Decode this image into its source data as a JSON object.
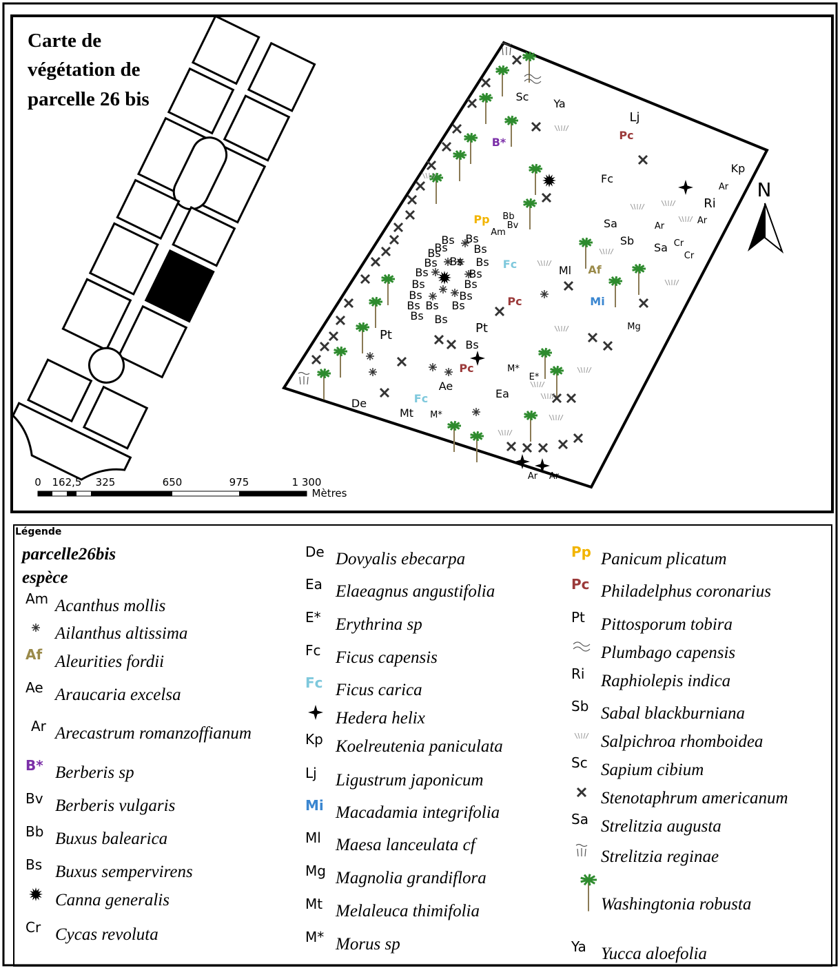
{
  "map": {
    "title": [
      "Carte de",
      "végétation de",
      "parcelle 26 bis"
    ],
    "north": "N",
    "scale": {
      "labels": [
        "0",
        "162,5",
        "325",
        "650",
        "975",
        "1 300"
      ],
      "unit": "Mètres"
    },
    "labels": [
      {
        "text": "Sc"
      },
      {
        "text": "Ya"
      },
      {
        "text": "Lj"
      },
      {
        "text": "Pc",
        "color": "#9b3a3a"
      },
      {
        "text": "B*",
        "color": "#7b2fa8"
      },
      {
        "text": "Kp"
      },
      {
        "text": "Ar"
      },
      {
        "text": "Fc"
      },
      {
        "text": "Ri"
      },
      {
        "text": "Ar"
      },
      {
        "text": "Ar"
      },
      {
        "text": "Sa"
      },
      {
        "text": "Pp",
        "color": "#f2b400"
      },
      {
        "text": "Bb"
      },
      {
        "text": "Bv"
      },
      {
        "text": "Am"
      },
      {
        "text": "Sb"
      },
      {
        "text": "Sa"
      },
      {
        "text": "Cr"
      },
      {
        "text": "Cr"
      },
      {
        "text": "Fc",
        "color": "#7ec8dc"
      },
      {
        "text": "Ml"
      },
      {
        "text": "Af",
        "color": "#9a8a4a"
      },
      {
        "text": "Mi",
        "color": "#3a86d0"
      },
      {
        "text": "Mg"
      },
      {
        "text": "Pc",
        "color": "#9b3a3a"
      },
      {
        "text": "Pt"
      },
      {
        "text": "Pt"
      },
      {
        "text": "Bs"
      },
      {
        "text": "Pc",
        "color": "#9b3a3a"
      },
      {
        "text": "M*"
      },
      {
        "text": "E*"
      },
      {
        "text": "Ae"
      },
      {
        "text": "Ea"
      },
      {
        "text": "Fc",
        "color": "#7ec8dc"
      },
      {
        "text": "De"
      },
      {
        "text": "Mt"
      },
      {
        "text": "M*"
      },
      {
        "text": "Ar"
      },
      {
        "text": "Ar"
      },
      {
        "text": "Bs"
      },
      {
        "text": "Bs"
      },
      {
        "text": "Bs"
      },
      {
        "text": "Bs"
      },
      {
        "text": "Bs"
      },
      {
        "text": "Bs"
      },
      {
        "text": "Bs"
      },
      {
        "text": "Bs"
      },
      {
        "text": "Bs"
      },
      {
        "text": "Bs"
      },
      {
        "text": "Bs"
      },
      {
        "text": "Bs"
      },
      {
        "text": "Bs"
      },
      {
        "text": "Bs"
      },
      {
        "text": "Bs"
      },
      {
        "text": "Bs"
      },
      {
        "text": "Bs"
      },
      {
        "text": "Bs"
      },
      {
        "text": "Bs"
      }
    ]
  },
  "legend": {
    "title": "Légende",
    "layer": "parcelle26bis",
    "field": "espèce",
    "columns": [
      {
        "items": [
          {
            "code": "Am",
            "name": "Acanthus mollis"
          },
          {
            "name": "Ailanthus altissima"
          },
          {
            "code": "Af",
            "name": "Aleurities fordii",
            "color": "#9a8a4a"
          },
          {
            "code": "Ae",
            "name": "Araucaria excelsa"
          },
          {
            "code": "Ar",
            "name": "Arecastrum romanzoffianum"
          },
          {
            "code": "B*",
            "name": "Berberis sp",
            "color": "#7b2fa8"
          },
          {
            "code": "Bv",
            "name": "Berberis vulgaris"
          },
          {
            "code": "Bb",
            "name": "Buxus balearica"
          },
          {
            "code": "Bs",
            "name": "Buxus sempervirens"
          },
          {
            "name": "Canna generalis"
          },
          {
            "code": "Cr",
            "name": "Cycas revoluta"
          }
        ]
      },
      {
        "items": [
          {
            "code": "De",
            "name": "Dovyalis ebecarpa"
          },
          {
            "code": "Ea",
            "name": "Elaeagnus angustifolia"
          },
          {
            "code": "E*",
            "name": "Erythrina sp"
          },
          {
            "code": "Fc",
            "name": "Ficus capensis"
          },
          {
            "code": "Fc",
            "name": "Ficus carica",
            "color": "#7ec8dc"
          },
          {
            "name": "Hedera helix"
          },
          {
            "code": "Kp",
            "name": "Koelreutenia paniculata"
          },
          {
            "code": "Lj",
            "name": "Ligustrum japonicum"
          },
          {
            "code": "Mi",
            "name": "Macadamia integrifolia",
            "color": "#3a86d0"
          },
          {
            "code": "Ml",
            "name": "Maesa lanceulata cf"
          },
          {
            "code": "Mg",
            "name": "Magnolia  grandiflora"
          },
          {
            "code": "Mt",
            "name": "Melaleuca thimifolia"
          },
          {
            "code": "M*",
            "name": "Morus sp"
          }
        ]
      },
      {
        "items": [
          {
            "code": "Pp",
            "name": "Panicum plicatum",
            "color": "#f2b400"
          },
          {
            "code": "Pc",
            "name": "Philadelphus coronarius",
            "color": "#9b3a3a"
          },
          {
            "code": "Pt",
            "name": "Pittosporum  tobira"
          },
          {
            "name": "Plumbago capensis"
          },
          {
            "code": "Ri",
            "name": "Raphiolepis indica"
          },
          {
            "code": "Sb",
            "name": "Sabal blackburniana"
          },
          {
            "name": "Salpichroa rhomboidea"
          },
          {
            "code": "Sc",
            "name": "Sapium cibium"
          },
          {
            "name": "Stenotaphrum americanum"
          },
          {
            "code": "Sa",
            "name": "Strelitzia augusta"
          },
          {
            "name": "Strelitzia reginae"
          },
          {
            "name": "Washingtonia robusta"
          },
          {
            "code": "Ya",
            "name": "Yucca aloefolia"
          }
        ]
      }
    ]
  }
}
